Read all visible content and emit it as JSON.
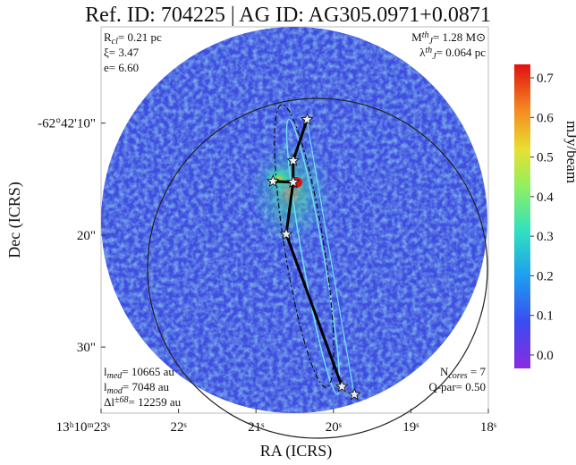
{
  "chart_data": {
    "type": "image",
    "title": "Ref. ID: 704225 | AG ID: AG305.0971+0.0871",
    "x_label": "RA (ICRS)",
    "y_label": "Dec (ICRS)",
    "xlim": [
      23.0,
      18.0
    ],
    "xticks": [
      {
        "value": 23,
        "label": "13ʰ10ᵐ23ˢ"
      },
      {
        "value": 22,
        "label": "22ˢ"
      },
      {
        "value": 21,
        "label": "21ˢ"
      },
      {
        "value": 20,
        "label": "20ˢ"
      },
      {
        "value": 19,
        "label": "19ˢ"
      },
      {
        "value": 18,
        "label": "18ˢ"
      }
    ],
    "ylim": [
      -35.9,
      -1.4
    ],
    "yticks": [
      {
        "value": -10,
        "label": "-62°42'10\""
      },
      {
        "value": -20,
        "label": "20\""
      },
      {
        "value": -30,
        "label": "30\""
      }
    ],
    "colorbar": {
      "label": "mJy/beam",
      "lim": [
        -0.034,
        0.734
      ],
      "ticks": [
        {
          "value": 0,
          "label": "0.0"
        },
        0.1,
        0.2,
        0.3,
        0.4,
        0.5,
        0.6,
        0.7
      ]
    },
    "cores": {
      "x": [
        20.34,
        20.52,
        20.78,
        20.52,
        20.61,
        19.89,
        19.73
      ],
      "y": [
        -9.68,
        -13.36,
        -15.2,
        -15.28,
        -19.92,
        -33.52,
        -34.24
      ]
    },
    "spine": {
      "x": [
        20.78,
        20.52,
        20.52,
        20.34,
        null,
        20.52,
        20.61,
        19.89
      ],
      "y": [
        -15.2,
        -15.28,
        -13.36,
        -9.68,
        null,
        -15.28,
        -19.92,
        -33.52
      ]
    },
    "annotations": {
      "top_left": [
        [
          {
            "t": "R"
          },
          {
            "sub": "cl"
          },
          {
            "t": "= 0.21 pc"
          }
        ],
        [
          {
            "t": "ξ= 3.47"
          }
        ],
        [
          {
            "t": "e= 6.60"
          }
        ]
      ],
      "top_right": [
        [
          {
            "t": "M"
          },
          {
            "sup": "th"
          },
          {
            "sub": "J"
          },
          {
            "t": "= 1.28 M⊙"
          }
        ],
        [
          {
            "t": "λ"
          },
          {
            "sup": "th"
          },
          {
            "sub": "J"
          },
          {
            "t": "= 0.064 pc"
          }
        ]
      ],
      "bottom_left": [
        [
          {
            "t": "l"
          },
          {
            "sub": "med"
          },
          {
            "t": "= 10665 au"
          }
        ],
        [
          {
            "t": "l"
          },
          {
            "sub": "mod"
          },
          {
            "t": "= 7048 au"
          }
        ],
        [
          {
            "t": "Δl"
          },
          {
            "sup": "±68"
          },
          {
            "t": "= 12259 au"
          }
        ]
      ],
      "bottom_right": [
        [
          {
            "t": "N"
          },
          {
            "sub": "cores"
          },
          {
            "t": " = 7"
          }
        ],
        [
          {
            "t": "Q-par= 0.50"
          }
        ]
      ]
    }
  }
}
